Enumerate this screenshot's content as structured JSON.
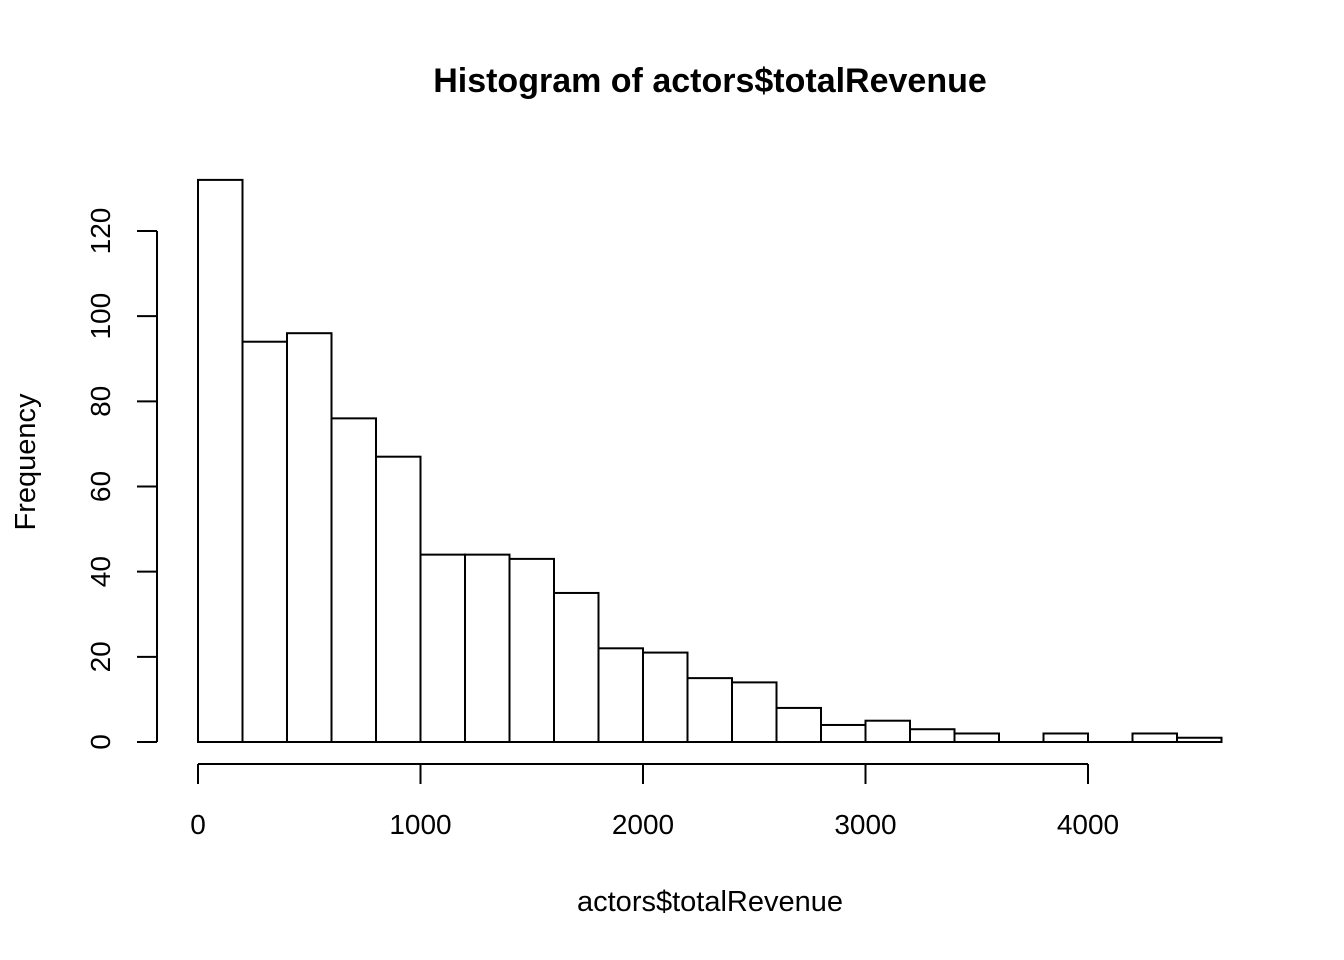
{
  "chart_data": {
    "type": "bar",
    "title": "Histogram of actors$totalRevenue",
    "xlabel": "actors$totalRevenue",
    "ylabel": "Frequency",
    "bin_width": 200,
    "bin_edges": [
      0,
      200,
      400,
      600,
      800,
      1000,
      1200,
      1400,
      1600,
      1800,
      2000,
      2200,
      2400,
      2600,
      2800,
      3000,
      3200,
      3400,
      3600,
      3800,
      4000,
      4200,
      4400,
      4600
    ],
    "values": [
      132,
      94,
      96,
      76,
      67,
      44,
      44,
      43,
      35,
      22,
      21,
      15,
      14,
      8,
      4,
      5,
      3,
      2,
      0,
      2,
      0,
      2,
      1
    ],
    "xlim": [
      0,
      4600
    ],
    "ylim": [
      0,
      132
    ],
    "x_ticks": [
      0,
      1000,
      2000,
      3000,
      4000
    ],
    "y_ticks": [
      0,
      20,
      40,
      60,
      80,
      100,
      120
    ],
    "grid": false,
    "legend": "none",
    "bar_fill": "#ffffff",
    "bar_stroke": "#000000"
  }
}
